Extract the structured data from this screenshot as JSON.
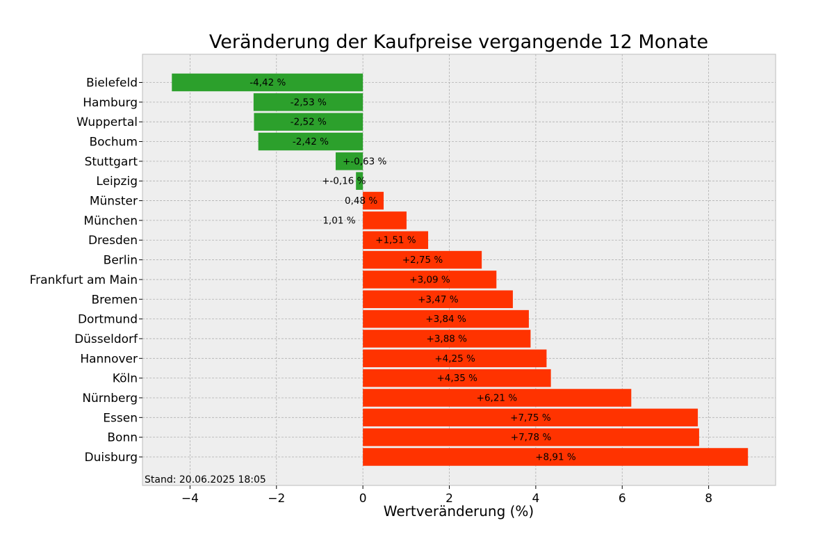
{
  "chart_data": {
    "type": "bar",
    "orientation": "horizontal",
    "title": "Veränderung der Kaufpreise vergangende 12 Monate",
    "xlabel": "Wertveränderung (%)",
    "ylabel": "",
    "xlim": [
      -5.1,
      9.55
    ],
    "xticks": [
      -4,
      -2,
      0,
      2,
      4,
      6,
      8
    ],
    "xtick_labels": [
      "−4",
      "−2",
      "0",
      "2",
      "4",
      "6",
      "8"
    ],
    "grid": true,
    "footnote": "Stand: 20.06.2025 18:05",
    "colors": {
      "negative": "#2ca02c",
      "positive": "#ff3300",
      "background": "#eeeeee",
      "frame": "#bcbcbc"
    },
    "categories": [
      "Bielefeld",
      "Hamburg",
      "Wuppertal",
      "Bochum",
      "Stuttgart",
      "Leipzig",
      "Münster",
      "München",
      "Dresden",
      "Berlin",
      "Frankfurt am Main",
      "Bremen",
      "Dortmund",
      "Düsseldorf",
      "Hannover",
      "Köln",
      "Nürnberg",
      "Essen",
      "Bonn",
      "Duisburg"
    ],
    "values": [
      -4.42,
      -2.53,
      -2.52,
      -2.42,
      -0.63,
      -0.16,
      0.48,
      1.01,
      1.51,
      2.75,
      3.09,
      3.47,
      3.84,
      3.88,
      4.25,
      4.35,
      6.21,
      7.75,
      7.78,
      8.91
    ],
    "labels": [
      "-4,42 %",
      "-2,53 %",
      "-2,52 %",
      "-2,42 %",
      "+-0,63 %",
      "+-0,16 %",
      "0,48 %",
      "1,01 %",
      "+1,51 %",
      "+2,75 %",
      "+3,09 %",
      "+3,47 %",
      "+3,84 %",
      "+3,88 %",
      "+4,25 %",
      "+4,35 %",
      "+6,21 %",
      "+7,75 %",
      "+7,78 %",
      "+8,91 %"
    ],
    "label_positions": [
      -2.2,
      -1.26,
      -1.26,
      -1.21,
      0.04,
      -0.44,
      -0.04,
      -0.55,
      0.76,
      1.38,
      1.55,
      1.74,
      1.92,
      1.94,
      2.13,
      2.18,
      3.1,
      3.88,
      3.89,
      4.46
    ]
  }
}
